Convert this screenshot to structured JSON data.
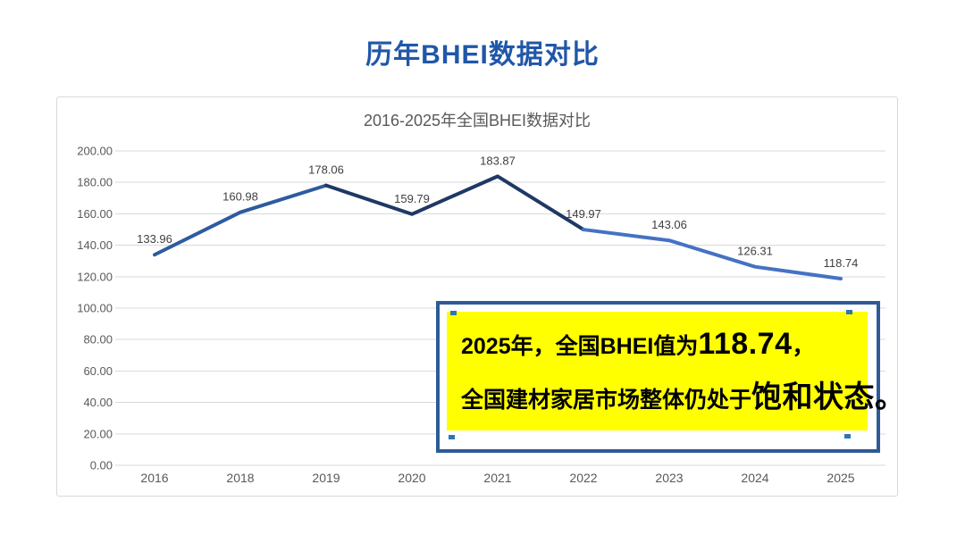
{
  "page": {
    "title": "历年BHEI数据对比"
  },
  "chart": {
    "title": "2016-2025年全国BHEI数据对比"
  },
  "chart_data": {
    "type": "line",
    "title": "2016-2025年全国BHEI数据对比",
    "categories": [
      "2016",
      "2018",
      "2019",
      "2020",
      "2021",
      "2022",
      "2023",
      "2024",
      "2025"
    ],
    "values": [
      133.96,
      160.98,
      178.06,
      159.79,
      183.87,
      149.97,
      143.06,
      126.31,
      118.74
    ],
    "data_labels": [
      "133.96",
      "160.98",
      "178.06",
      "159.79",
      "183.87",
      "149.97",
      "143.06",
      "126.31",
      "118.74"
    ],
    "xlabel": "",
    "ylabel": "",
    "ylim": [
      0,
      200
    ],
    "ytick_labels": [
      "0.00",
      "20.00",
      "40.00",
      "60.00",
      "80.00",
      "100.00",
      "120.00",
      "140.00",
      "160.00",
      "180.00",
      "200.00"
    ],
    "grid": true,
    "legend": "none",
    "line_segments": [
      {
        "from_index": 0,
        "to_index": 2,
        "color": "#2E5B9F"
      },
      {
        "from_index": 2,
        "to_index": 5,
        "color": "#1F3864"
      },
      {
        "from_index": 5,
        "to_index": 8,
        "color": "#4472C4"
      }
    ],
    "colors": {
      "gridline": "#D9D9D9",
      "axis_label": "#595959",
      "data_label": "#404040"
    }
  },
  "callout": {
    "line1_prefix": "2025年，全国BHEI值为",
    "line1_value": "118.74",
    "line1_suffix": "，",
    "line2_prefix": "全国建材家居市场整体仍处于",
    "line2_emphasis": "饱和状态",
    "line2_suffix": "。",
    "bg_color": "#FFFF00",
    "border_color": "#2E5B97"
  }
}
